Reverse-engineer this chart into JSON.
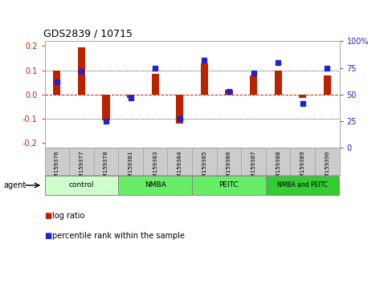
{
  "title": "GDS2839 / 10715",
  "samples": [
    "GSM159376",
    "GSM159377",
    "GSM159378",
    "GSM159381",
    "GSM159383",
    "GSM159384",
    "GSM159385",
    "GSM159386",
    "GSM159387",
    "GSM159388",
    "GSM159389",
    "GSM159390"
  ],
  "log_ratio": [
    0.1,
    0.195,
    -0.105,
    -0.015,
    0.085,
    -0.12,
    0.13,
    0.02,
    0.08,
    0.1,
    -0.015,
    0.08
  ],
  "percentile": [
    62,
    72,
    25,
    47,
    75,
    27,
    82,
    53,
    70,
    80,
    42,
    75
  ],
  "groups": [
    {
      "label": "control",
      "start": 0,
      "end": 3,
      "color": "#ccffcc"
    },
    {
      "label": "NMBA",
      "start": 3,
      "end": 6,
      "color": "#66ee66"
    },
    {
      "label": "PEITC",
      "start": 6,
      "end": 9,
      "color": "#66ee66"
    },
    {
      "label": "NMBA and PEITC",
      "start": 9,
      "end": 12,
      "color": "#33cc33"
    }
  ],
  "ylim_left": [
    -0.22,
    0.22
  ],
  "ylim_right": [
    0,
    100
  ],
  "yticks_left": [
    -0.2,
    -0.1,
    0.0,
    0.1,
    0.2
  ],
  "yticks_right": [
    0,
    25,
    50,
    75,
    100
  ],
  "ytick_labels_right": [
    "0",
    "25",
    "50",
    "75",
    "100%"
  ],
  "bar_color_red": "#bb2200",
  "bar_color_blue": "#2222cc",
  "sample_bg": "#cccccc",
  "bg_color": "#ffffff"
}
